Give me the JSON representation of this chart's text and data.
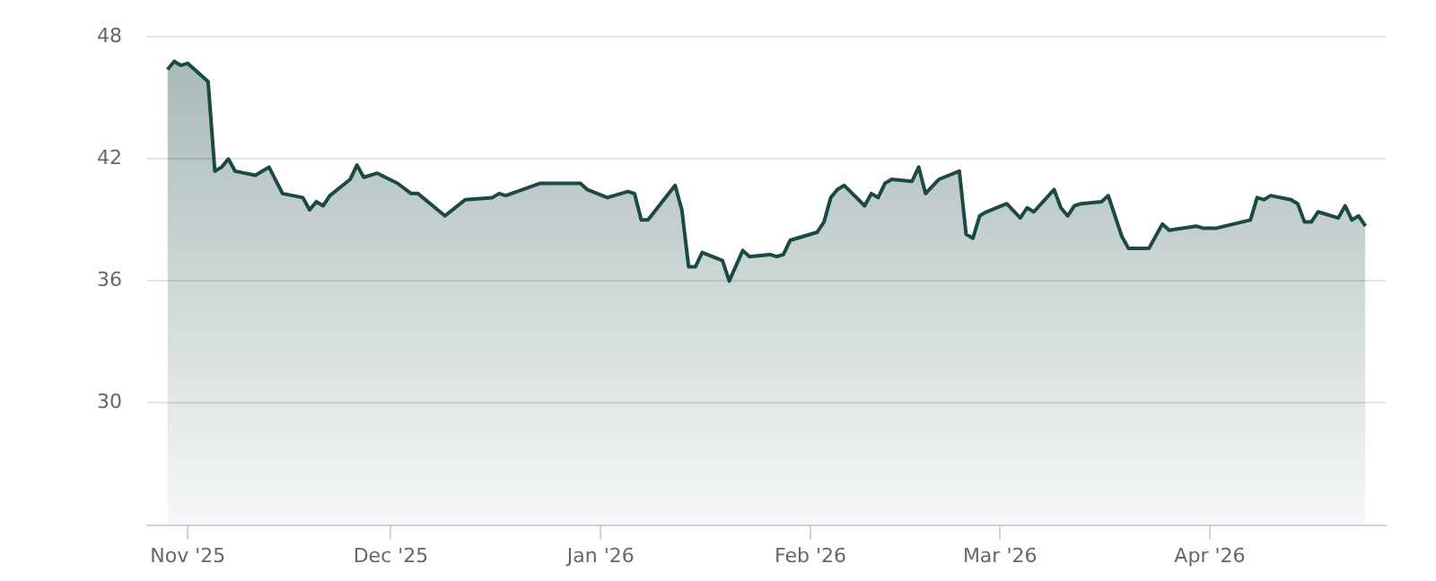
{
  "chart_data": {
    "type": "area",
    "x": [
      "2025-10-29",
      "2025-10-30",
      "2025-10-31",
      "2025-11-01",
      "2025-11-04",
      "2025-11-05",
      "2025-11-06",
      "2025-11-07",
      "2025-11-08",
      "2025-11-11",
      "2025-11-13",
      "2025-11-15",
      "2025-11-18",
      "2025-11-19",
      "2025-11-20",
      "2025-11-21",
      "2025-11-22",
      "2025-11-25",
      "2025-11-26",
      "2025-11-27",
      "2025-11-29",
      "2025-12-02",
      "2025-12-04",
      "2025-12-05",
      "2025-12-09",
      "2025-12-12",
      "2025-12-16",
      "2025-12-17",
      "2025-12-18",
      "2025-12-23",
      "2025-12-29",
      "2025-12-30",
      "2026-01-02",
      "2026-01-05",
      "2026-01-06",
      "2026-01-07",
      "2026-01-08",
      "2026-01-12",
      "2026-01-13",
      "2026-01-14",
      "2026-01-15",
      "2026-01-16",
      "2026-01-19",
      "2026-01-20",
      "2026-01-22",
      "2026-01-23",
      "2026-01-26",
      "2026-01-27",
      "2026-01-28",
      "2026-01-29",
      "2026-02-02",
      "2026-02-03",
      "2026-02-04",
      "2026-02-05",
      "2026-02-06",
      "2026-02-09",
      "2026-02-10",
      "2026-02-11",
      "2026-02-12",
      "2026-02-13",
      "2026-02-16",
      "2026-02-17",
      "2026-02-18",
      "2026-02-20",
      "2026-02-23",
      "2026-02-24",
      "2026-02-25",
      "2026-02-26",
      "2026-02-27",
      "2026-03-02",
      "2026-03-04",
      "2026-03-05",
      "2026-03-06",
      "2026-03-09",
      "2026-03-10",
      "2026-03-11",
      "2026-03-12",
      "2026-03-13",
      "2026-03-16",
      "2026-03-17",
      "2026-03-19",
      "2026-03-20",
      "2026-03-23",
      "2026-03-24",
      "2026-03-25",
      "2026-03-26",
      "2026-03-30",
      "2026-03-31",
      "2026-04-02",
      "2026-04-07",
      "2026-04-08",
      "2026-04-09",
      "2026-04-10",
      "2026-04-13",
      "2026-04-14",
      "2026-04-15",
      "2026-04-16",
      "2026-04-17",
      "2026-04-20",
      "2026-04-21",
      "2026-04-22",
      "2026-04-23",
      "2026-04-24"
    ],
    "series": [
      {
        "color": "#1b4a45",
        "values": [
          46.4,
          46.8,
          46.6,
          46.7,
          45.8,
          41.4,
          41.6,
          42.0,
          41.4,
          41.2,
          41.6,
          40.3,
          40.1,
          39.5,
          39.9,
          39.7,
          40.2,
          41.0,
          41.7,
          41.1,
          41.3,
          40.8,
          40.3,
          40.3,
          39.2,
          40.0,
          40.1,
          40.3,
          40.2,
          40.8,
          40.8,
          40.5,
          40.1,
          40.4,
          40.3,
          39.0,
          39.0,
          40.7,
          39.5,
          36.7,
          36.7,
          37.4,
          37.0,
          36.0,
          37.5,
          37.2,
          37.3,
          37.2,
          37.3,
          38.0,
          38.4,
          38.9,
          40.1,
          40.5,
          40.7,
          39.7,
          40.3,
          40.1,
          40.8,
          41.0,
          40.9,
          41.6,
          40.3,
          41.0,
          41.4,
          38.3,
          38.1,
          39.2,
          39.4,
          39.8,
          39.1,
          39.6,
          39.4,
          40.5,
          39.6,
          39.2,
          39.7,
          39.8,
          39.9,
          40.2,
          38.2,
          37.6,
          37.6,
          38.2,
          38.8,
          38.5,
          38.7,
          38.6,
          38.6,
          39.0,
          40.1,
          40.0,
          40.2,
          40.0,
          39.8,
          38.9,
          38.9,
          39.4,
          39.1,
          39.7,
          39.0,
          39.2,
          38.7
        ]
      }
    ],
    "xlim": [
      "2025-10-26",
      "2026-04-27"
    ],
    "xticks": [
      {
        "value": "2025-11-01",
        "label": "Nov '25"
      },
      {
        "value": "2025-12-01",
        "label": "Dec '25"
      },
      {
        "value": "2026-01-01",
        "label": "Jan '26"
      },
      {
        "value": "2026-02-01",
        "label": "Feb '26"
      },
      {
        "value": "2026-03-01",
        "label": "Mar '26"
      },
      {
        "value": "2026-04-01",
        "label": "Apr '26"
      }
    ],
    "ylim": [
      24,
      48
    ],
    "yticks": [
      30,
      36,
      42,
      48
    ],
    "grid": "y",
    "legend": false,
    "marker": "none",
    "line_style": "solid"
  }
}
